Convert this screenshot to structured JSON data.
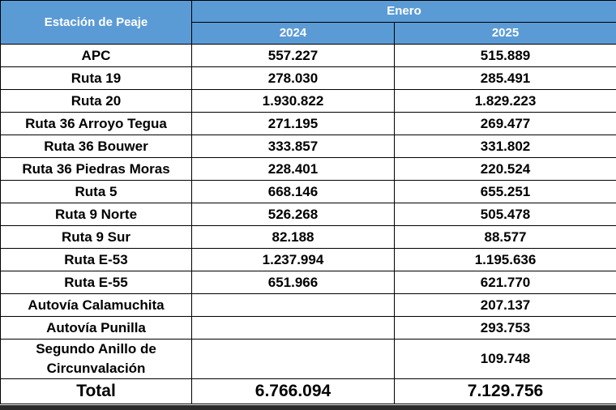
{
  "header": {
    "title": "Estación de Peaje",
    "group": "Enero",
    "years": [
      "2024",
      "2025"
    ]
  },
  "rows": [
    [
      "APC",
      "557.227",
      "515.889"
    ],
    [
      "Ruta 19",
      "278.030",
      "285.491"
    ],
    [
      "Ruta 20",
      "1.930.822",
      "1.829.223"
    ],
    [
      "Ruta 36 Arroyo Tegua",
      "271.195",
      "269.477"
    ],
    [
      "Ruta 36 Bouwer",
      "333.857",
      "331.802"
    ],
    [
      "Ruta 36 Piedras Moras",
      "228.401",
      "220.524"
    ],
    [
      "Ruta 5",
      "668.146",
      "655.251"
    ],
    [
      "Ruta 9 Norte",
      "526.268",
      "505.478"
    ],
    [
      "Ruta 9 Sur",
      "82.188",
      "88.577"
    ],
    [
      "Ruta E-53",
      "1.237.994",
      "1.195.636"
    ],
    [
      "Ruta E-55",
      "651.966",
      "621.770"
    ],
    [
      "Autovía Calamuchita",
      null,
      "207.137"
    ],
    [
      "Autovía Punilla",
      null,
      "293.753"
    ],
    [
      "Segundo Anillo de Circunvalación",
      null,
      "109.748"
    ]
  ],
  "total": [
    "Total",
    "6.766.094",
    "7.129.756"
  ]
}
